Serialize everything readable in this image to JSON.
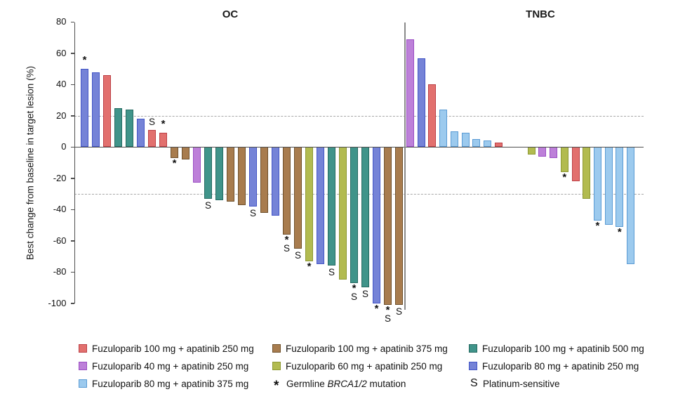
{
  "figure": {
    "ylabel": "Best change from baseline in target lesion (%)",
    "panel_titles": [
      "OC",
      "TNBC"
    ]
  },
  "colors": {
    "red": {
      "fill": "#e2706e",
      "stroke": "#bc4046"
    },
    "brown": {
      "fill": "#a87c4e",
      "stroke": "#6f512c"
    },
    "teal": {
      "fill": "#40948a",
      "stroke": "#256a61"
    },
    "orchid": {
      "fill": "#bd80d9",
      "stroke": "#9b4fc4"
    },
    "yellowgreen": {
      "fill": "#b2bb50",
      "stroke": "#8d9934"
    },
    "blueviolet": {
      "fill": "#7583d7",
      "stroke": "#4355c6"
    },
    "lightblue": {
      "fill": "#9ccaee",
      "stroke": "#5a9bd4"
    }
  },
  "chart_data": {
    "type": "bar",
    "ylabel": "Best change from baseline in target lesion (%)",
    "ylim": [
      -105,
      80
    ],
    "yticks": [
      80,
      60,
      40,
      20,
      0,
      -20,
      -40,
      -60,
      -80,
      -100
    ],
    "reference_lines": [
      20,
      -30
    ],
    "grid": "dashed-horizontal",
    "legend_position": "bottom",
    "groups": [
      {
        "name": "OC",
        "bars": [
          {
            "value": 50,
            "color": "blueviolet",
            "mark": "*"
          },
          {
            "value": 48,
            "color": "blueviolet"
          },
          {
            "value": 46,
            "color": "red"
          },
          {
            "value": 25,
            "color": "teal"
          },
          {
            "value": 24,
            "color": "teal"
          },
          {
            "value": 18,
            "color": "blueviolet"
          },
          {
            "value": 11,
            "color": "red",
            "mark": "S"
          },
          {
            "value": 9,
            "color": "red",
            "mark": "*"
          },
          {
            "value": -7,
            "color": "brown",
            "mark": "*"
          },
          {
            "value": -8,
            "color": "brown"
          },
          {
            "value": -23,
            "color": "orchid"
          },
          {
            "value": -33,
            "color": "teal",
            "mark": "S"
          },
          {
            "value": -34,
            "color": "teal"
          },
          {
            "value": -35,
            "color": "brown"
          },
          {
            "value": -37,
            "color": "brown"
          },
          {
            "value": -38,
            "color": "blueviolet",
            "mark": "S"
          },
          {
            "value": -42,
            "color": "brown"
          },
          {
            "value": -44,
            "color": "blueviolet"
          },
          {
            "value": -56,
            "color": "brown",
            "mark": "*S"
          },
          {
            "value": -65,
            "color": "brown",
            "mark": "S"
          },
          {
            "value": -73,
            "color": "yellowgreen",
            "mark": "*"
          },
          {
            "value": -75,
            "color": "blueviolet"
          },
          {
            "value": -76,
            "color": "teal",
            "mark": "S"
          },
          {
            "value": -85,
            "color": "yellowgreen"
          },
          {
            "value": -87,
            "color": "teal",
            "mark": "*S"
          },
          {
            "value": -90,
            "color": "teal",
            "mark": "S"
          },
          {
            "value": -100,
            "color": "blueviolet",
            "mark": "*"
          },
          {
            "value": -101,
            "color": "brown",
            "mark": "*S"
          },
          {
            "value": -101,
            "color": "brown",
            "mark": "S"
          }
        ]
      },
      {
        "name": "TNBC",
        "bars": [
          {
            "value": 69,
            "color": "orchid"
          },
          {
            "value": 57,
            "color": "blueviolet"
          },
          {
            "value": 40,
            "color": "red"
          },
          {
            "value": 24,
            "color": "lightblue"
          },
          {
            "value": 10,
            "color": "lightblue"
          },
          {
            "value": 9,
            "color": "lightblue"
          },
          {
            "value": 5,
            "color": "lightblue"
          },
          {
            "value": 4,
            "color": "lightblue"
          },
          {
            "value": 3,
            "color": "red"
          },
          {
            "gap": true
          },
          {
            "gap": true
          },
          {
            "value": -5,
            "color": "yellowgreen"
          },
          {
            "value": -6,
            "color": "orchid"
          },
          {
            "value": -7,
            "color": "orchid"
          },
          {
            "value": -16,
            "color": "yellowgreen",
            "mark": "*"
          },
          {
            "value": -22,
            "color": "red"
          },
          {
            "value": -33,
            "color": "yellowgreen"
          },
          {
            "value": -47,
            "color": "lightblue",
            "mark": "*"
          },
          {
            "value": -50,
            "color": "lightblue"
          },
          {
            "value": -51,
            "color": "lightblue",
            "mark": "*"
          },
          {
            "value": -75,
            "color": "lightblue"
          }
        ]
      }
    ]
  },
  "legend": {
    "columns": [
      [
        {
          "color": "red",
          "label": "Fuzuloparib 100 mg + apatinib 250 mg"
        },
        {
          "color": "orchid",
          "label": "Fuzuloparib 40 mg + apatinib 250 mg"
        },
        {
          "color": "lightblue",
          "label": "Fuzuloparib 80 mg + apatinib 375 mg"
        }
      ],
      [
        {
          "color": "brown",
          "label": "Fuzuloparib 100 mg + apatinib 375 mg"
        },
        {
          "color": "yellowgreen",
          "label": "Fuzuloparib 60 mg + apatinib 250 mg"
        },
        {
          "symbol": "*",
          "name": "germline-brca-mutation",
          "parts": [
            {
              "t": "Germline "
            },
            {
              "t": "BRCA1/2",
              "i": true
            },
            {
              "t": " mutation"
            }
          ]
        }
      ],
      [
        {
          "color": "teal",
          "label": "Fuzuloparib 100 mg + apatinib 500 mg"
        },
        {
          "color": "blueviolet",
          "label": "Fuzuloparib 80 mg + apatinib 250 mg"
        },
        {
          "symbol": "S",
          "name": "platinum-sensitive",
          "parts": [
            {
              "t": "Platinum-sensitive"
            }
          ]
        }
      ]
    ]
  }
}
